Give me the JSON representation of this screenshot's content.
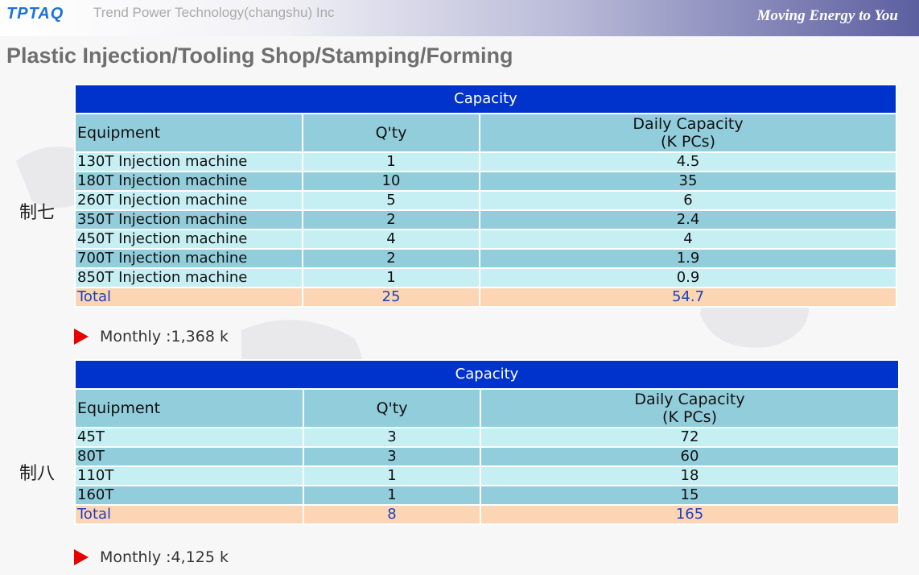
{
  "header": {
    "logo": "TPTAQ",
    "company": "Trend Power Technology(changshu) Inc",
    "slogan": "Moving Energy to You"
  },
  "page_title": "Plastic Injection/Tooling Shop/Stamping/Forming",
  "sections": [
    {
      "label": "制七",
      "table_title": "Capacity",
      "headers": {
        "equipment": "Equipment",
        "qty": "Q'ty",
        "daily_line1": "Daily Capacity",
        "daily_line2": "(K PCs)"
      },
      "rows": [
        {
          "equipment": "130T Injection machine",
          "qty": "1",
          "daily": "4.5"
        },
        {
          "equipment": "180T Injection machine",
          "qty": "10",
          "daily": "35"
        },
        {
          "equipment": "260T Injection machine",
          "qty": "5",
          "daily": "6"
        },
        {
          "equipment": "350T Injection machine",
          "qty": "2",
          "daily": "2.4"
        },
        {
          "equipment": "450T Injection machine",
          "qty": "4",
          "daily": "4"
        },
        {
          "equipment": "700T Injection machine",
          "qty": "2",
          "daily": "1.9"
        },
        {
          "equipment": "850T Injection machine",
          "qty": "1",
          "daily": "0.9"
        }
      ],
      "total": {
        "equipment": "Total",
        "qty": "25",
        "daily": "54.7"
      },
      "monthly": "Monthly :1,368 k"
    },
    {
      "label": "制八",
      "table_title": "Capacity",
      "headers": {
        "equipment": "Equipment",
        "qty": "Q'ty",
        "daily_line1": "Daily Capacity",
        "daily_line2": "(K PCs)"
      },
      "rows": [
        {
          "equipment": "45T",
          "qty": "3",
          "daily": "72"
        },
        {
          "equipment": "80T",
          "qty": "3",
          "daily": "60"
        },
        {
          "equipment": "110T",
          "qty": "1",
          "daily": "18"
        },
        {
          "equipment": "160T",
          "qty": "1",
          "daily": "15"
        }
      ],
      "total": {
        "equipment": "Total",
        "qty": "8",
        "daily": "165"
      },
      "monthly": "Monthly :4,125 k"
    }
  ],
  "colors": {
    "title_bar": "#0033cc",
    "header_row": "#92cddc",
    "light_row": "#c6eff4",
    "total_row": "#fcd5b5",
    "total_text": "#1f3fbf",
    "arrow": "#e60000"
  }
}
